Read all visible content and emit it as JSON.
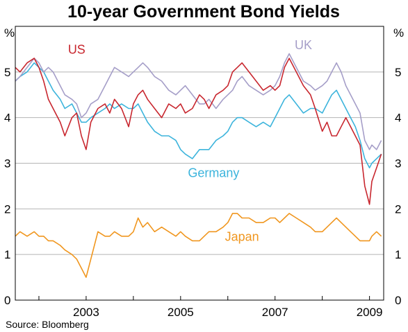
{
  "chart_data": {
    "type": "line",
    "title": "10-year Government Bond Yields",
    "unit_left": "%",
    "unit_right": "%",
    "source": "Source: Bloomberg",
    "ylim": [
      0,
      6
    ],
    "yticks": [
      0,
      1,
      2,
      3,
      4,
      5
    ],
    "xlim": [
      2001.5,
      2009.3
    ],
    "xticks": [
      {
        "v": 2003.0,
        "label": "2003"
      },
      {
        "v": 2005.0,
        "label": "2005"
      },
      {
        "v": 2007.0,
        "label": "2007"
      },
      {
        "v": 2009.0,
        "label": "2009"
      }
    ],
    "grid": true,
    "colors": {
      "US": "#c8262e",
      "UK": "#a59ec8",
      "Germany": "#3cb4dc",
      "Japan": "#f0961e"
    },
    "series": [
      {
        "name": "US",
        "label_at": [
          2002.8,
          5.4
        ],
        "x": [
          2001.5,
          2001.6,
          2001.75,
          2001.9,
          2002.0,
          2002.1,
          2002.2,
          2002.3,
          2002.45,
          2002.55,
          2002.7,
          2002.8,
          2002.9,
          2003.0,
          2003.1,
          2003.25,
          2003.4,
          2003.5,
          2003.6,
          2003.75,
          2003.9,
          2004.0,
          2004.1,
          2004.2,
          2004.3,
          2004.45,
          2004.6,
          2004.75,
          2004.9,
          2005.0,
          2005.1,
          2005.25,
          2005.4,
          2005.5,
          2005.6,
          2005.75,
          2005.9,
          2006.0,
          2006.1,
          2006.2,
          2006.3,
          2006.45,
          2006.6,
          2006.75,
          2006.9,
          2007.0,
          2007.1,
          2007.2,
          2007.3,
          2007.45,
          2007.6,
          2007.75,
          2007.85,
          2008.0,
          2008.1,
          2008.2,
          2008.3,
          2008.4,
          2008.5,
          2008.6,
          2008.7,
          2008.8,
          2008.9,
          2009.0,
          2009.05,
          2009.15,
          2009.25
        ],
        "values": [
          5.1,
          5.0,
          5.2,
          5.3,
          5.1,
          4.8,
          4.4,
          4.2,
          3.9,
          3.6,
          4.0,
          4.1,
          3.6,
          3.3,
          3.9,
          4.2,
          4.3,
          4.1,
          4.4,
          4.2,
          3.8,
          4.3,
          4.5,
          4.6,
          4.4,
          4.2,
          4.0,
          4.3,
          4.2,
          4.3,
          4.1,
          4.2,
          4.5,
          4.4,
          4.2,
          4.5,
          4.6,
          4.7,
          5.0,
          5.1,
          5.2,
          5.0,
          4.8,
          4.6,
          4.7,
          4.6,
          4.7,
          5.1,
          5.3,
          5.0,
          4.7,
          4.5,
          4.2,
          3.7,
          3.9,
          3.6,
          3.6,
          3.8,
          4.0,
          3.8,
          3.6,
          3.4,
          2.5,
          2.1,
          2.6,
          2.9,
          3.2
        ]
      },
      {
        "name": "UK",
        "label_at": [
          2007.6,
          5.5
        ],
        "x": [
          2001.5,
          2001.6,
          2001.75,
          2001.9,
          2002.0,
          2002.1,
          2002.2,
          2002.3,
          2002.45,
          2002.55,
          2002.7,
          2002.8,
          2002.9,
          2003.0,
          2003.1,
          2003.25,
          2003.4,
          2003.5,
          2003.6,
          2003.75,
          2003.9,
          2004.0,
          2004.1,
          2004.2,
          2004.3,
          2004.45,
          2004.6,
          2004.75,
          2004.9,
          2005.0,
          2005.1,
          2005.25,
          2005.4,
          2005.5,
          2005.6,
          2005.75,
          2005.9,
          2006.0,
          2006.1,
          2006.2,
          2006.3,
          2006.45,
          2006.6,
          2006.75,
          2006.9,
          2007.0,
          2007.1,
          2007.2,
          2007.3,
          2007.45,
          2007.6,
          2007.75,
          2007.85,
          2008.0,
          2008.1,
          2008.2,
          2008.3,
          2008.4,
          2008.5,
          2008.6,
          2008.7,
          2008.8,
          2008.9,
          2009.0,
          2009.05,
          2009.15,
          2009.25
        ],
        "values": [
          4.8,
          4.9,
          5.1,
          5.3,
          5.2,
          5.0,
          5.1,
          5.0,
          4.7,
          4.5,
          4.4,
          4.3,
          4.0,
          4.1,
          4.3,
          4.4,
          4.7,
          4.9,
          5.1,
          5.0,
          4.9,
          5.0,
          5.1,
          5.2,
          5.1,
          4.9,
          4.8,
          4.6,
          4.5,
          4.6,
          4.7,
          4.5,
          4.3,
          4.3,
          4.4,
          4.2,
          4.4,
          4.5,
          4.6,
          4.8,
          4.9,
          4.7,
          4.6,
          4.5,
          4.6,
          4.7,
          4.9,
          5.2,
          5.4,
          5.1,
          4.8,
          4.7,
          4.6,
          4.7,
          4.8,
          5.0,
          5.2,
          5.0,
          4.7,
          4.5,
          4.3,
          4.1,
          3.5,
          3.3,
          3.4,
          3.3,
          3.5
        ]
      },
      {
        "name": "Germany",
        "label_at": [
          2005.7,
          2.7
        ],
        "x": [
          2001.5,
          2001.6,
          2001.75,
          2001.9,
          2002.0,
          2002.1,
          2002.2,
          2002.3,
          2002.45,
          2002.55,
          2002.7,
          2002.8,
          2002.9,
          2003.0,
          2003.1,
          2003.25,
          2003.4,
          2003.5,
          2003.6,
          2003.75,
          2003.9,
          2004.0,
          2004.1,
          2004.2,
          2004.3,
          2004.45,
          2004.6,
          2004.75,
          2004.9,
          2005.0,
          2005.1,
          2005.25,
          2005.4,
          2005.5,
          2005.6,
          2005.75,
          2005.9,
          2006.0,
          2006.1,
          2006.2,
          2006.3,
          2006.45,
          2006.6,
          2006.75,
          2006.9,
          2007.0,
          2007.1,
          2007.2,
          2007.3,
          2007.45,
          2007.6,
          2007.75,
          2007.85,
          2008.0,
          2008.1,
          2008.2,
          2008.3,
          2008.4,
          2008.5,
          2008.6,
          2008.7,
          2008.8,
          2008.9,
          2009.0,
          2009.05,
          2009.15,
          2009.25
        ],
        "values": [
          4.8,
          4.9,
          5.0,
          5.2,
          5.1,
          5.0,
          4.8,
          4.6,
          4.4,
          4.2,
          4.3,
          4.1,
          3.9,
          3.9,
          4.0,
          4.1,
          4.2,
          4.3,
          4.2,
          4.3,
          4.2,
          4.2,
          4.3,
          4.1,
          3.9,
          3.7,
          3.6,
          3.6,
          3.5,
          3.3,
          3.2,
          3.1,
          3.3,
          3.3,
          3.3,
          3.5,
          3.6,
          3.7,
          3.9,
          4.0,
          4.0,
          3.9,
          3.8,
          3.9,
          3.8,
          4.0,
          4.2,
          4.4,
          4.5,
          4.3,
          4.1,
          4.2,
          4.2,
          4.1,
          4.3,
          4.5,
          4.6,
          4.4,
          4.2,
          4.0,
          3.8,
          3.5,
          3.1,
          2.9,
          3.0,
          3.1,
          3.2
        ]
      },
      {
        "name": "Japan",
        "label_at": [
          2006.3,
          1.3
        ],
        "x": [
          2001.5,
          2001.6,
          2001.75,
          2001.9,
          2002.0,
          2002.1,
          2002.2,
          2002.3,
          2002.45,
          2002.55,
          2002.7,
          2002.8,
          2002.9,
          2003.0,
          2003.1,
          2003.25,
          2003.4,
          2003.5,
          2003.6,
          2003.75,
          2003.9,
          2004.0,
          2004.1,
          2004.2,
          2004.3,
          2004.45,
          2004.6,
          2004.75,
          2004.9,
          2005.0,
          2005.1,
          2005.25,
          2005.4,
          2005.5,
          2005.6,
          2005.75,
          2005.9,
          2006.0,
          2006.1,
          2006.2,
          2006.3,
          2006.45,
          2006.6,
          2006.75,
          2006.9,
          2007.0,
          2007.1,
          2007.2,
          2007.3,
          2007.45,
          2007.6,
          2007.75,
          2007.85,
          2008.0,
          2008.1,
          2008.2,
          2008.3,
          2008.4,
          2008.5,
          2008.6,
          2008.7,
          2008.8,
          2008.9,
          2009.0,
          2009.05,
          2009.15,
          2009.25
        ],
        "values": [
          1.4,
          1.5,
          1.4,
          1.5,
          1.4,
          1.4,
          1.3,
          1.3,
          1.2,
          1.1,
          1.0,
          0.9,
          0.7,
          0.5,
          0.9,
          1.5,
          1.4,
          1.4,
          1.5,
          1.4,
          1.4,
          1.5,
          1.8,
          1.6,
          1.7,
          1.5,
          1.6,
          1.5,
          1.4,
          1.5,
          1.4,
          1.3,
          1.3,
          1.4,
          1.5,
          1.5,
          1.6,
          1.7,
          1.9,
          1.9,
          1.8,
          1.8,
          1.7,
          1.7,
          1.8,
          1.8,
          1.7,
          1.8,
          1.9,
          1.8,
          1.7,
          1.6,
          1.5,
          1.5,
          1.6,
          1.7,
          1.8,
          1.7,
          1.6,
          1.5,
          1.4,
          1.3,
          1.3,
          1.3,
          1.4,
          1.5,
          1.4
        ]
      }
    ]
  }
}
